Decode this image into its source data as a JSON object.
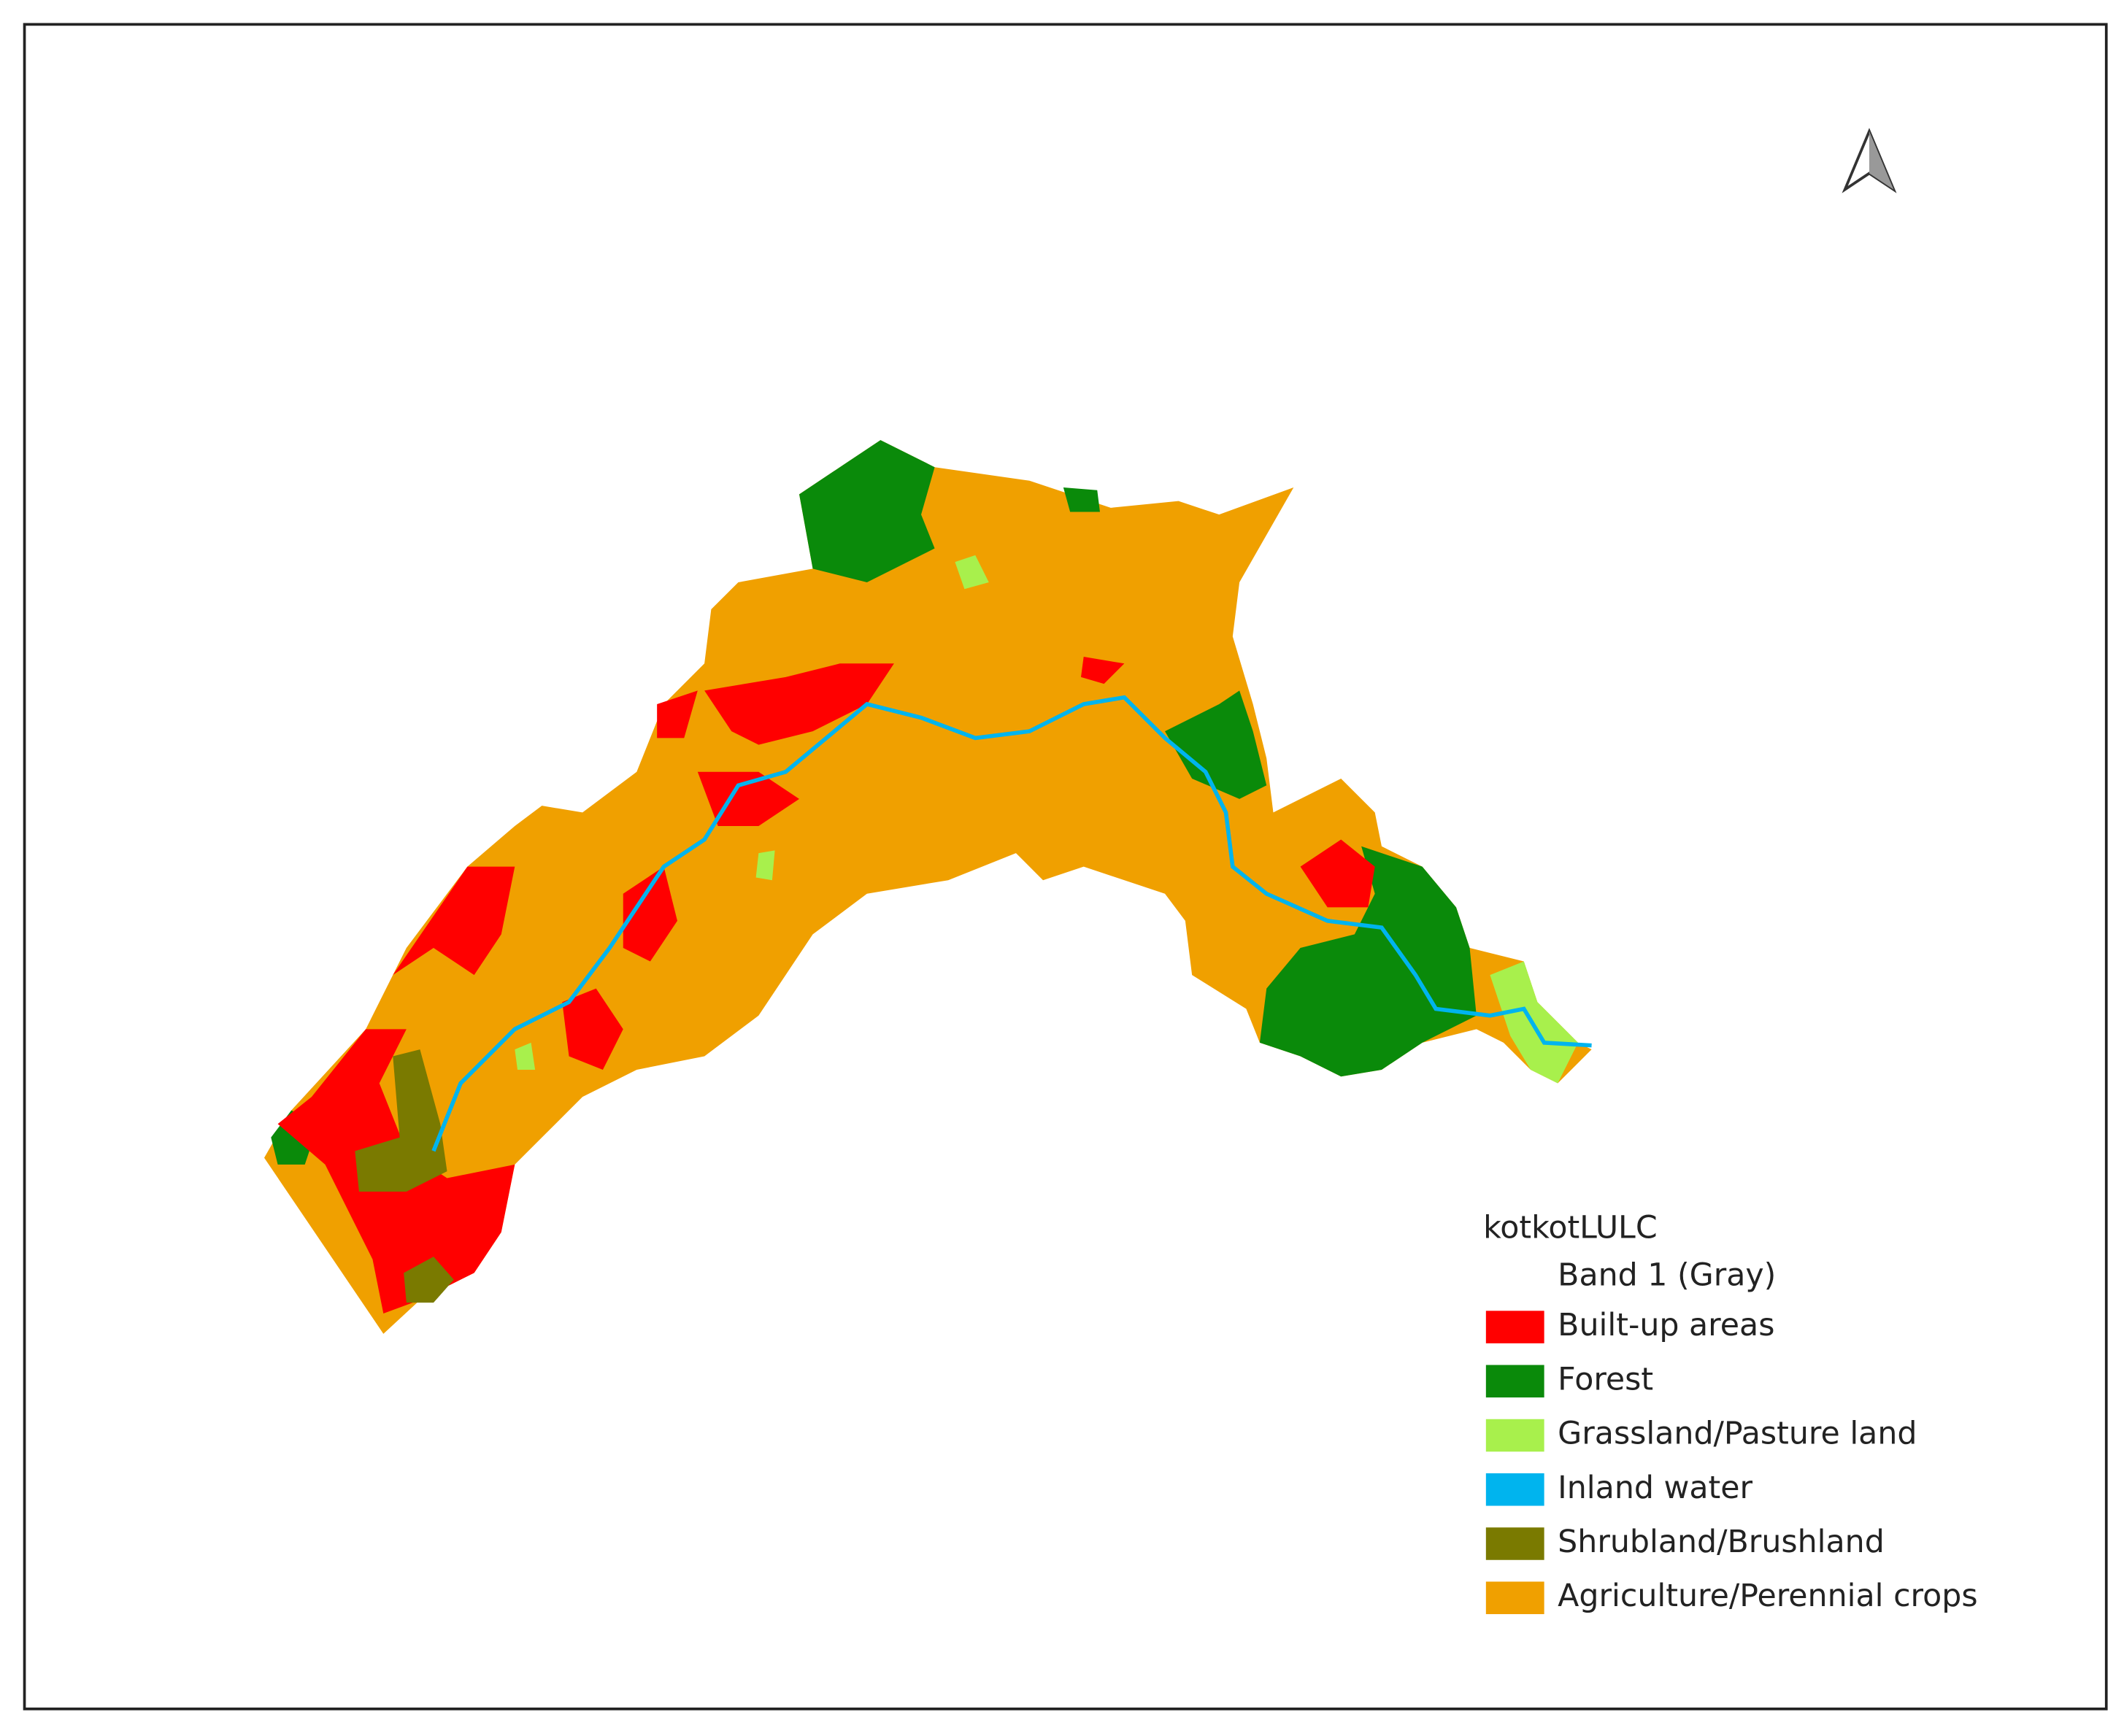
{
  "legend": {
    "title": "kotkotLULC",
    "band": "Band 1 (Gray)",
    "items": [
      {
        "name": "Built-up areas",
        "color": "#ff0000"
      },
      {
        "name": "Forest",
        "color": "#0a8a0a"
      },
      {
        "name": "Grassland/Pasture land",
        "color": "#a8f04c"
      },
      {
        "name": "Inland water",
        "color": "#00b4ee"
      },
      {
        "name": "Shrubland/Brushland",
        "color": "#7a7a00"
      },
      {
        "name": "Agriculture/Perennial crops",
        "color": "#f0a000"
      }
    ]
  }
}
